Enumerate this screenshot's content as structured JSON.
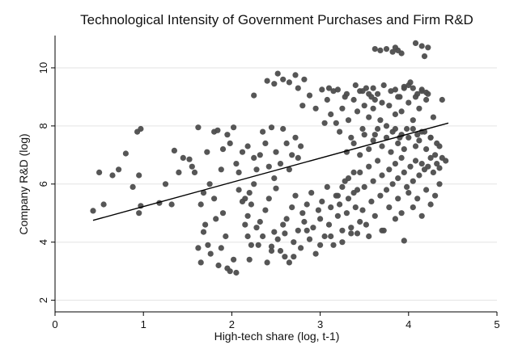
{
  "chart_data": {
    "type": "scatter",
    "title": "Technological Intensity of Government Purchases and Firm R&D",
    "xlabel": "High-tech share (log, t-1)",
    "ylabel": "Company R&D (log)",
    "xlim": [
      0,
      5
    ],
    "ylim": [
      1.6,
      11.0
    ],
    "xticks": [
      "0",
      "1",
      "2",
      "3",
      "4",
      "5"
    ],
    "yticks": [
      "2",
      "4",
      "6",
      "8",
      "10"
    ],
    "grid": true,
    "point_color": "#4d4d4d",
    "line_color": "#000000",
    "fit_line": {
      "x": [
        0.43,
        4.45
      ],
      "y": [
        4.75,
        8.1
      ]
    },
    "points": [
      [
        0.43,
        5.08
      ],
      [
        0.5,
        6.4
      ],
      [
        0.55,
        5.3
      ],
      [
        0.65,
        6.3
      ],
      [
        0.72,
        6.5
      ],
      [
        0.8,
        7.05
      ],
      [
        0.88,
        5.9
      ],
      [
        0.93,
        7.8
      ],
      [
        0.97,
        7.9
      ],
      [
        0.95,
        5.0
      ],
      [
        0.97,
        5.25
      ],
      [
        0.95,
        6.3
      ],
      [
        1.18,
        5.35
      ],
      [
        1.25,
        6.0
      ],
      [
        1.32,
        5.3
      ],
      [
        1.35,
        7.15
      ],
      [
        1.4,
        6.4
      ],
      [
        1.45,
        6.9
      ],
      [
        1.52,
        6.85
      ],
      [
        1.55,
        6.6
      ],
      [
        1.58,
        6.4
      ],
      [
        1.62,
        7.95
      ],
      [
        1.65,
        5.3
      ],
      [
        1.68,
        5.7
      ],
      [
        1.72,
        7.1
      ],
      [
        1.75,
        6.0
      ],
      [
        1.8,
        7.8
      ],
      [
        1.84,
        7.85
      ],
      [
        1.88,
        6.5
      ],
      [
        1.9,
        7.2
      ],
      [
        1.95,
        7.7
      ],
      [
        1.98,
        7.4
      ],
      [
        2.02,
        7.95
      ],
      [
        2.05,
        6.7
      ],
      [
        2.08,
        6.4
      ],
      [
        2.12,
        7.1
      ],
      [
        2.15,
        5.5
      ],
      [
        2.18,
        7.3
      ],
      [
        2.22,
        5.3
      ],
      [
        2.25,
        6.9
      ],
      [
        2.28,
        6.5
      ],
      [
        2.32,
        7.0
      ],
      [
        2.35,
        7.8
      ],
      [
        2.38,
        7.4
      ],
      [
        2.42,
        6.6
      ],
      [
        2.45,
        7.95
      ],
      [
        2.48,
        6.2
      ],
      [
        2.5,
        7.1
      ],
      [
        2.55,
        6.7
      ],
      [
        2.58,
        7.9
      ],
      [
        2.62,
        7.4
      ],
      [
        2.65,
        6.5
      ],
      [
        2.68,
        7.0
      ],
      [
        2.72,
        7.6
      ],
      [
        2.75,
        6.9
      ],
      [
        2.78,
        7.3
      ],
      [
        1.62,
        3.8
      ],
      [
        1.65,
        3.3
      ],
      [
        1.68,
        4.35
      ],
      [
        1.7,
        4.6
      ],
      [
        1.73,
        3.9
      ],
      [
        1.76,
        3.6
      ],
      [
        1.8,
        5.5
      ],
      [
        1.82,
        4.8
      ],
      [
        1.85,
        3.2
      ],
      [
        1.88,
        3.8
      ],
      [
        1.9,
        5.0
      ],
      [
        1.93,
        4.2
      ],
      [
        1.95,
        3.1
      ],
      [
        1.98,
        3.0
      ],
      [
        2.02,
        3.4
      ],
      [
        2.05,
        2.95
      ],
      [
        2.08,
        5.8
      ],
      [
        2.12,
        5.4
      ],
      [
        2.15,
        4.6
      ],
      [
        2.18,
        4.9
      ],
      [
        2.2,
        5.7
      ],
      [
        2.22,
        3.9
      ],
      [
        2.25,
        6.0
      ],
      [
        2.28,
        4.5
      ],
      [
        2.32,
        4.7
      ],
      [
        2.35,
        4.2
      ],
      [
        2.38,
        5.1
      ],
      [
        2.4,
        3.3
      ],
      [
        2.42,
        5.5
      ],
      [
        2.45,
        3.85
      ],
      [
        2.48,
        4.35
      ],
      [
        2.5,
        5.85
      ],
      [
        2.52,
        4.1
      ],
      [
        2.55,
        3.7
      ],
      [
        2.58,
        4.6
      ],
      [
        2.6,
        3.5
      ],
      [
        2.62,
        4.8
      ],
      [
        2.65,
        3.3
      ],
      [
        2.68,
        5.2
      ],
      [
        2.7,
        4.0
      ],
      [
        2.72,
        5.6
      ],
      [
        2.75,
        4.4
      ],
      [
        2.78,
        3.8
      ],
      [
        2.8,
        5.0
      ],
      [
        2.82,
        4.7
      ],
      [
        2.85,
        5.3
      ],
      [
        2.88,
        4.1
      ],
      [
        2.9,
        5.7
      ],
      [
        2.92,
        4.5
      ],
      [
        2.95,
        3.6
      ],
      [
        2.98,
        5.1
      ],
      [
        3.0,
        4.8
      ],
      [
        3.02,
        5.4
      ],
      [
        3.05,
        4.2
      ],
      [
        3.08,
        5.9
      ],
      [
        3.1,
        4.6
      ],
      [
        3.12,
        5.2
      ],
      [
        3.15,
        3.9
      ],
      [
        3.18,
        5.6
      ],
      [
        3.2,
        4.9
      ],
      [
        3.22,
        5.3
      ],
      [
        3.25,
        4.4
      ],
      [
        3.28,
        6.1
      ],
      [
        3.3,
        5.0
      ],
      [
        3.32,
        5.5
      ],
      [
        3.35,
        4.3
      ],
      [
        3.38,
        6.4
      ],
      [
        3.4,
        5.2
      ],
      [
        3.42,
        5.8
      ],
      [
        3.45,
        4.7
      ],
      [
        2.25,
        9.05
      ],
      [
        2.4,
        9.55
      ],
      [
        2.48,
        9.45
      ],
      [
        2.52,
        9.8
      ],
      [
        2.58,
        9.6
      ],
      [
        2.65,
        9.5
      ],
      [
        2.72,
        9.75
      ],
      [
        2.75,
        9.3
      ],
      [
        2.8,
        8.7
      ],
      [
        2.82,
        9.6
      ],
      [
        2.88,
        9.05
      ],
      [
        2.95,
        8.6
      ],
      [
        3.02,
        9.25
      ],
      [
        3.05,
        8.1
      ],
      [
        3.08,
        8.9
      ],
      [
        3.12,
        8.4
      ],
      [
        3.15,
        9.2
      ],
      [
        3.18,
        8.1
      ],
      [
        3.22,
        7.8
      ],
      [
        3.25,
        8.6
      ],
      [
        3.28,
        9.0
      ],
      [
        3.32,
        8.2
      ],
      [
        3.35,
        7.6
      ],
      [
        3.38,
        8.9
      ],
      [
        3.42,
        8.5
      ],
      [
        3.45,
        9.2
      ],
      [
        3.48,
        7.9
      ],
      [
        3.5,
        8.7
      ],
      [
        3.52,
        9.3
      ],
      [
        3.55,
        8.3
      ],
      [
        3.58,
        9.0
      ],
      [
        3.6,
        8.6
      ],
      [
        3.62,
        7.7
      ],
      [
        3.65,
        9.1
      ],
      [
        3.68,
        8.2
      ],
      [
        3.7,
        8.8
      ],
      [
        3.72,
        9.4
      ],
      [
        3.75,
        8.0
      ],
      [
        3.78,
        8.7
      ],
      [
        3.8,
        9.2
      ],
      [
        3.82,
        7.8
      ],
      [
        3.85,
        8.4
      ],
      [
        3.88,
        9.0
      ],
      [
        3.9,
        7.6
      ],
      [
        3.92,
        8.5
      ],
      [
        3.95,
        9.3
      ],
      [
        3.98,
        7.9
      ],
      [
        4.0,
        8.8
      ],
      [
        4.02,
        9.5
      ],
      [
        4.05,
        8.2
      ],
      [
        4.08,
        9.0
      ],
      [
        4.1,
        7.7
      ],
      [
        4.12,
        8.6
      ],
      [
        4.15,
        9.2
      ],
      [
        4.18,
        7.8
      ],
      [
        4.2,
        8.9
      ],
      [
        4.22,
        9.1
      ],
      [
        4.25,
        7.6
      ],
      [
        4.28,
        8.3
      ],
      [
        4.32,
        7.4
      ],
      [
        4.38,
        8.9
      ],
      [
        4.0,
        9.4
      ],
      [
        4.05,
        9.3
      ],
      [
        4.1,
        9.1
      ],
      [
        4.15,
        9.25
      ],
      [
        4.2,
        9.15
      ],
      [
        3.9,
        9.0
      ],
      [
        3.95,
        9.35
      ],
      [
        3.85,
        9.25
      ],
      [
        3.6,
        9.3
      ],
      [
        3.48,
        9.2
      ],
      [
        3.55,
        9.1
      ],
      [
        3.62,
        8.9
      ],
      [
        3.4,
        9.4
      ],
      [
        3.3,
        9.1
      ],
      [
        3.2,
        9.25
      ],
      [
        3.1,
        9.3
      ],
      [
        3.62,
        10.65
      ],
      [
        3.68,
        10.6
      ],
      [
        3.75,
        10.65
      ],
      [
        3.82,
        10.55
      ],
      [
        3.85,
        10.7
      ],
      [
        3.88,
        10.6
      ],
      [
        3.92,
        10.5
      ],
      [
        4.08,
        10.85
      ],
      [
        4.15,
        10.75
      ],
      [
        4.22,
        10.7
      ],
      [
        4.18,
        10.4
      ],
      [
        3.3,
        7.1
      ],
      [
        3.38,
        7.4
      ],
      [
        3.45,
        7.0
      ],
      [
        3.5,
        7.7
      ],
      [
        3.55,
        7.2
      ],
      [
        3.6,
        7.5
      ],
      [
        3.65,
        7.9
      ],
      [
        3.7,
        7.3
      ],
      [
        3.75,
        7.6
      ],
      [
        3.8,
        7.1
      ],
      [
        3.85,
        7.9
      ],
      [
        3.88,
        7.4
      ],
      [
        3.92,
        7.7
      ],
      [
        3.95,
        7.2
      ],
      [
        4.0,
        7.6
      ],
      [
        4.05,
        7.9
      ],
      [
        4.08,
        7.3
      ],
      [
        4.12,
        7.5
      ],
      [
        4.15,
        7.8
      ],
      [
        4.2,
        7.2
      ],
      [
        4.25,
        7.6
      ],
      [
        4.3,
        7.0
      ],
      [
        4.35,
        7.3
      ],
      [
        4.42,
        6.8
      ],
      [
        3.2,
        5.6
      ],
      [
        3.25,
        5.9
      ],
      [
        3.32,
        6.2
      ],
      [
        3.38,
        5.7
      ],
      [
        3.45,
        6.4
      ],
      [
        3.5,
        5.9
      ],
      [
        3.55,
        6.6
      ],
      [
        3.6,
        6.1
      ],
      [
        3.65,
        6.8
      ],
      [
        3.7,
        6.3
      ],
      [
        3.75,
        5.8
      ],
      [
        3.78,
        6.5
      ],
      [
        3.82,
        6.0
      ],
      [
        3.85,
        6.7
      ],
      [
        3.88,
        6.2
      ],
      [
        3.92,
        6.9
      ],
      [
        3.95,
        6.4
      ],
      [
        3.98,
        5.9
      ],
      [
        4.02,
        6.6
      ],
      [
        4.05,
        6.1
      ],
      [
        4.08,
        6.8
      ],
      [
        4.12,
        6.3
      ],
      [
        4.15,
        6.7
      ],
      [
        4.18,
        6.5
      ],
      [
        4.22,
        6.6
      ],
      [
        4.25,
        6.9
      ],
      [
        4.28,
        6.4
      ],
      [
        4.32,
        6.7
      ],
      [
        4.35,
        6.55
      ],
      [
        4.38,
        6.9
      ],
      [
        3.48,
        5.1
      ],
      [
        3.52,
        4.6
      ],
      [
        3.58,
        5.4
      ],
      [
        3.62,
        4.9
      ],
      [
        3.68,
        5.6
      ],
      [
        3.72,
        4.4
      ],
      [
        3.78,
        5.2
      ],
      [
        3.85,
        4.8
      ],
      [
        3.88,
        5.5
      ],
      [
        3.92,
        5.0
      ],
      [
        3.95,
        4.05
      ],
      [
        4.0,
        5.7
      ],
      [
        4.05,
        5.2
      ],
      [
        4.1,
        5.5
      ],
      [
        4.15,
        4.9
      ],
      [
        4.2,
        5.8
      ],
      [
        4.25,
        5.3
      ],
      [
        4.3,
        5.6
      ],
      [
        4.35,
        6.0
      ],
      [
        2.18,
        4.2
      ],
      [
        2.2,
        3.4
      ],
      [
        2.3,
        3.9
      ],
      [
        2.45,
        3.7
      ],
      [
        2.6,
        4.3
      ],
      [
        2.7,
        3.5
      ],
      [
        2.85,
        4.4
      ],
      [
        3.0,
        3.9
      ],
      [
        3.12,
        4.2
      ],
      [
        3.25,
        4.0
      ],
      [
        3.35,
        4.5
      ],
      [
        3.42,
        4.3
      ],
      [
        3.55,
        4.2
      ],
      [
        3.7,
        4.4
      ]
    ]
  }
}
